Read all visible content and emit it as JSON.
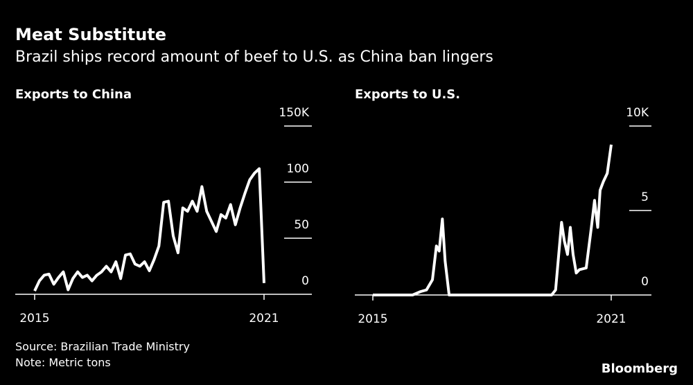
{
  "title": "Meat Substitute",
  "subtitle": "Brazil ships record amount of beef to U.S. as China ban lingers",
  "source": "Source: Brazilian Trade Ministry",
  "note": "Note: Metric tons",
  "brand": "Bloomberg",
  "chart_data": [
    {
      "type": "line",
      "title": "Exports to China",
      "color": "#ffffff",
      "x": [
        2015,
        2015.125,
        2015.25,
        2015.375,
        2015.5,
        2015.625,
        2015.75,
        2015.875,
        2016,
        2016.125,
        2016.25,
        2016.375,
        2016.5,
        2016.625,
        2016.75,
        2016.875,
        2017,
        2017.125,
        2017.25,
        2017.375,
        2017.5,
        2017.625,
        2017.75,
        2017.875,
        2018,
        2018.125,
        2018.25,
        2018.375,
        2018.5,
        2018.625,
        2018.75,
        2018.875,
        2019,
        2019.125,
        2019.25,
        2019.375,
        2019.5,
        2019.625,
        2019.75,
        2019.875,
        2020,
        2020.125,
        2020.25,
        2020.375,
        2020.5,
        2020.625,
        2020.75,
        2020.875,
        2021
      ],
      "values": [
        3,
        12,
        17,
        18,
        9,
        15,
        20,
        4,
        14,
        20,
        15,
        17,
        12,
        17,
        20,
        25,
        20,
        29,
        14,
        35,
        36,
        27,
        25,
        29,
        21,
        31,
        43,
        82,
        83,
        52,
        37,
        77,
        74,
        83,
        74,
        96,
        74,
        65,
        56,
        71,
        68,
        80,
        62,
        77,
        90,
        102,
        108,
        112,
        10
      ],
      "xlim": [
        2015,
        2021
      ],
      "xticks": [
        2015,
        2021
      ],
      "ylim": [
        0,
        150
      ],
      "yticks": [
        0,
        50,
        100,
        {
          "value": 150,
          "label": "150K"
        }
      ]
    },
    {
      "type": "line",
      "title": "Exports to U.S.",
      "color": "#ffffff",
      "x": [
        2015,
        2016,
        2016.2,
        2016.35,
        2016.5,
        2016.6,
        2016.67,
        2016.75,
        2016.82,
        2016.92,
        2017.5,
        2018.5,
        2019.5,
        2019.6,
        2019.75,
        2019.82,
        2019.9,
        2019.97,
        2020.04,
        2020.12,
        2020.2,
        2020.37,
        2020.5,
        2020.58,
        2020.66,
        2020.72,
        2020.8,
        2020.9,
        2021
      ],
      "values": [
        0,
        0,
        0.2,
        0.3,
        0.9,
        2.9,
        2.6,
        4.5,
        2.0,
        0,
        0,
        0,
        0,
        0.3,
        4.3,
        3.2,
        2.4,
        4.0,
        2.4,
        1.3,
        1.5,
        1.6,
        4.0,
        5.6,
        4.0,
        6.2,
        6.7,
        7.2,
        8.9
      ],
      "xlim": [
        2015,
        2021
      ],
      "xticks": [
        2015,
        2021
      ],
      "ylim": [
        0,
        10
      ],
      "yticks": [
        0,
        5,
        {
          "value": 10,
          "label": "10K"
        }
      ]
    }
  ]
}
